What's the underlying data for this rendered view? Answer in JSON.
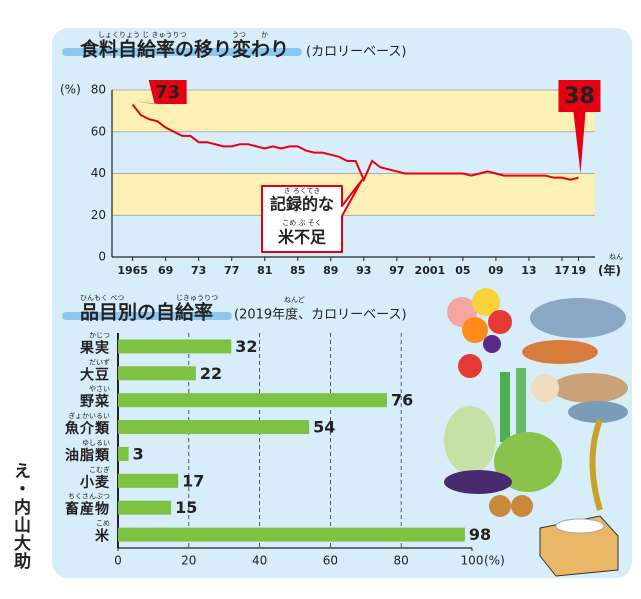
{
  "credit": "え・内山大助",
  "chart_data": [
    {
      "type": "line",
      "title": "食料自給率の移り変わり",
      "title_ruby": [
        "しょくりょう じ きゅうりつ",
        "うつ",
        "か"
      ],
      "subtitle": "(カロリーベース)",
      "y_label": "(%)",
      "x_unit": "(年)",
      "x_unit_ruby": "ねん",
      "annotation": [
        "記録的な",
        "米不足"
      ],
      "annotation_ruby": [
        "き ろくてき",
        "こめ ぶ そく"
      ],
      "x": [
        1965,
        1966,
        1967,
        1968,
        1969,
        1970,
        1971,
        1972,
        1973,
        1974,
        1975,
        1976,
        1977,
        1978,
        1979,
        1980,
        1981,
        1982,
        1983,
        1984,
        1985,
        1986,
        1987,
        1988,
        1989,
        1990,
        1991,
        1992,
        1993,
        1994,
        1995,
        1996,
        1997,
        1998,
        1999,
        2000,
        2001,
        2002,
        2003,
        2004,
        2005,
        2006,
        2007,
        2008,
        2009,
        2010,
        2011,
        2012,
        2013,
        2014,
        2015,
        2016,
        2017,
        2018,
        2019
      ],
      "series": [
        {
          "color": "#e60012",
          "values": [
            73,
            68,
            66,
            65,
            62,
            60,
            58,
            58,
            55,
            55,
            54,
            53,
            53,
            54,
            54,
            53,
            52,
            53,
            52,
            53,
            53,
            51,
            50,
            50,
            49,
            48,
            46,
            46,
            37,
            46,
            43,
            42,
            41,
            40,
            40,
            40,
            40,
            40,
            40,
            40,
            40,
            39,
            40,
            41,
            40,
            39,
            39,
            39,
            39,
            39,
            39,
            38,
            38,
            37,
            38
          ],
          "value_labels": [
            "73",
            null,
            null,
            null,
            null,
            null,
            null,
            null,
            null,
            null,
            null,
            null,
            null,
            null,
            null,
            null,
            null,
            null,
            null,
            null,
            null,
            null,
            null,
            null,
            null,
            null,
            null,
            null,
            null,
            null,
            null,
            null,
            null,
            null,
            null,
            null,
            null,
            null,
            null,
            null,
            null,
            null,
            null,
            null,
            null,
            null,
            null,
            null,
            null,
            null,
            null,
            null,
            null,
            null,
            "38"
          ]
        }
      ],
      "xlim": [
        1962.5,
        2021
      ],
      "xticks": [
        1965,
        {
          "value": 1969,
          "label": "69"
        },
        {
          "value": 1973,
          "label": "73"
        },
        {
          "value": 1977,
          "label": "77"
        },
        {
          "value": 1981,
          "label": "81"
        },
        {
          "value": 1985,
          "label": "85"
        },
        {
          "value": 1989,
          "label": "89"
        },
        {
          "value": 1993,
          "label": "93"
        },
        {
          "value": 1997,
          "label": "97"
        },
        2001,
        {
          "value": 2005,
          "label": "05"
        },
        {
          "value": 2009,
          "label": "09"
        },
        {
          "value": 2013,
          "label": "13"
        },
        {
          "value": 2017,
          "label": "17"
        },
        {
          "value": 2019,
          "label": "19"
        }
      ],
      "ylim": [
        0,
        80
      ],
      "yticks": [
        0,
        20,
        40,
        60,
        80
      ],
      "band_color": "#fcf0b4"
    },
    {
      "type": "hbar",
      "title": "品目別の自給率",
      "title_ruby": [
        "ひんもく べつ",
        "じきゅうりつ"
      ],
      "subtitle": "(2019年度、カロリーベース)",
      "subtitle_ruby": "ねんど",
      "categories": [
        "果実",
        "大豆",
        "野菜",
        "魚介類",
        "油脂類",
        "小麦",
        "畜産物",
        "米"
      ],
      "category_ruby": [
        "かじつ",
        "だいず",
        "やさい",
        "ぎょかいるい",
        "ゆしるい",
        "こむぎ",
        "ちくさんぶつ",
        "こめ"
      ],
      "values": [
        32,
        22,
        76,
        54,
        3,
        17,
        15,
        98
      ],
      "color": "#7dc242",
      "xlim": [
        0,
        100
      ],
      "xticks": [
        0,
        20,
        40,
        60,
        80,
        100
      ],
      "x_unit": "(%)",
      "grid": true
    }
  ]
}
